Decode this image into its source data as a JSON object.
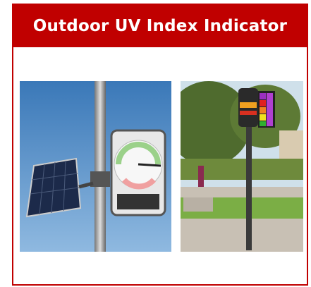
{
  "header": {
    "title": "Outdoor UV Index Indicator"
  }
}
